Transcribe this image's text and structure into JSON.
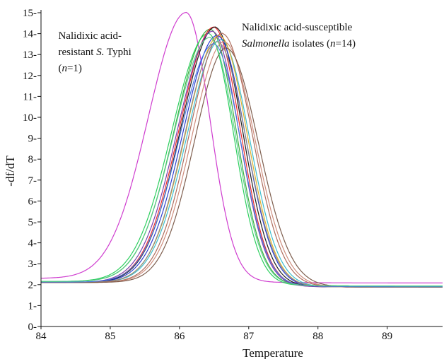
{
  "chart_data": {
    "type": "line",
    "xlabel": "Temperature",
    "ylabel": "-df/dT",
    "xlim": [
      84,
      89.8
    ],
    "ylim": [
      0,
      15
    ],
    "x_ticks": [
      84,
      85,
      86,
      87,
      88,
      89
    ],
    "y_ticks": [
      0,
      1,
      2,
      3,
      4,
      5,
      6,
      7,
      8,
      9,
      10,
      11,
      12,
      13,
      14,
      15
    ],
    "grid": false,
    "annotations": [
      {
        "lines": [
          [
            {
              "text": "Nalidixic acid-",
              "italic": false
            }
          ],
          [
            {
              "text": "resistant ",
              "italic": false
            },
            {
              "text": "S.",
              "italic": true
            },
            {
              "text": " Typhi",
              "italic": false
            }
          ],
          [
            {
              "text": "(",
              "italic": false
            },
            {
              "text": "n",
              "italic": true
            },
            {
              "text": "=1)",
              "italic": false
            }
          ]
        ],
        "at": [
          84.25,
          13.75
        ]
      },
      {
        "lines": [
          [
            {
              "text": "Nalidixic acid-susceptible",
              "italic": false
            }
          ],
          [
            {
              "text": "Salmonella",
              "italic": true
            },
            {
              "text": " isolates (",
              "italic": false
            },
            {
              "text": "n",
              "italic": true
            },
            {
              "text": "=14)",
              "italic": false
            }
          ]
        ],
        "at": [
          86.9,
          14.15
        ]
      }
    ],
    "curve_model": "peak-shaped melt curves: baseline 2.1, left width ~0.50, right width ~0.38",
    "series": [
      {
        "color": "#cc33cc",
        "peak_x": 86.1,
        "peak_y": 15.0,
        "baseline": 2.3,
        "wl": 0.55,
        "wr": 0.34
      },
      {
        "color": "#33aa33",
        "peak_x": 86.45,
        "peak_y": 14.2,
        "baseline": 2.15,
        "wl": 0.52,
        "wr": 0.37
      },
      {
        "color": "#22cc55",
        "peak_x": 86.42,
        "peak_y": 14.0,
        "baseline": 2.15,
        "wl": 0.53,
        "wr": 0.36
      },
      {
        "color": "#ee2222",
        "peak_x": 86.5,
        "peak_y": 14.3,
        "baseline": 2.1,
        "wl": 0.5,
        "wr": 0.38
      },
      {
        "color": "#111111",
        "peak_x": 86.52,
        "peak_y": 14.3,
        "baseline": 2.1,
        "wl": 0.5,
        "wr": 0.39
      },
      {
        "color": "#2233cc",
        "peak_x": 86.55,
        "peak_y": 13.9,
        "baseline": 2.1,
        "wl": 0.5,
        "wr": 0.4
      },
      {
        "color": "#7733aa",
        "peak_x": 86.48,
        "peak_y": 14.1,
        "baseline": 2.1,
        "wl": 0.51,
        "wr": 0.38
      },
      {
        "color": "#33bbcc",
        "peak_x": 86.6,
        "peak_y": 13.7,
        "baseline": 2.1,
        "wl": 0.49,
        "wr": 0.41
      },
      {
        "color": "#ddaa22",
        "peak_x": 86.58,
        "peak_y": 13.9,
        "baseline": 2.1,
        "wl": 0.49,
        "wr": 0.4
      },
      {
        "color": "#888888",
        "peak_x": 86.55,
        "peak_y": 13.6,
        "baseline": 2.1,
        "wl": 0.48,
        "wr": 0.41
      },
      {
        "color": "#aa6655",
        "peak_x": 86.62,
        "peak_y": 14.0,
        "baseline": 2.1,
        "wl": 0.47,
        "wr": 0.43
      },
      {
        "color": "#cc8877",
        "peak_x": 86.65,
        "peak_y": 13.6,
        "baseline": 2.1,
        "wl": 0.47,
        "wr": 0.44
      },
      {
        "color": "#775544",
        "peak_x": 86.68,
        "peak_y": 13.3,
        "baseline": 2.1,
        "wl": 0.46,
        "wr": 0.46
      },
      {
        "color": "#4477dd",
        "peak_x": 86.5,
        "peak_y": 13.5,
        "baseline": 2.12,
        "wl": 0.5,
        "wr": 0.38
      },
      {
        "color": "#55cc88",
        "peak_x": 86.44,
        "peak_y": 13.8,
        "baseline": 2.15,
        "wl": 0.52,
        "wr": 0.37
      }
    ]
  }
}
